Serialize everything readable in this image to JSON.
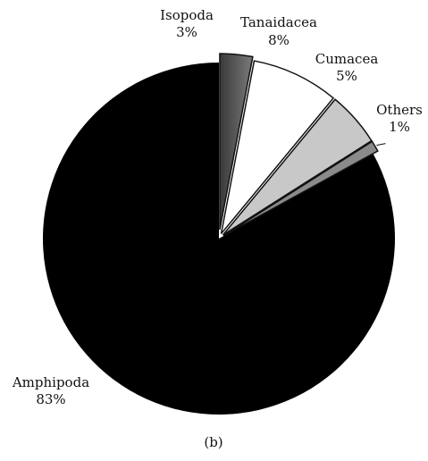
{
  "chart_data": {
    "type": "pie",
    "panel_label": "(b)",
    "slices": [
      {
        "name": "Amphipoda",
        "value_label": "83%",
        "value": 83,
        "color": "#000000"
      },
      {
        "name": "Isopoda",
        "value_label": "3%",
        "value": 3,
        "color": "#505050"
      },
      {
        "name": "Tanaidacea",
        "value_label": "8%",
        "value": 8,
        "color": "#ffffff"
      },
      {
        "name": "Cumacea",
        "value_label": "5%",
        "value": 5,
        "color": "#c8c8c8"
      },
      {
        "name": "Others",
        "value_label": "1%",
        "value": 1,
        "color": "#8a8a8a"
      }
    ]
  }
}
